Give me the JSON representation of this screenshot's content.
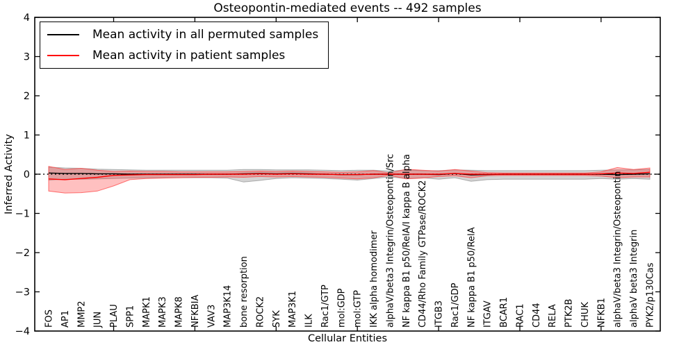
{
  "title": "Osteopontin-mediated events -- 492 samples",
  "axes": {
    "xlabel": "Cellular Entities",
    "ylabel": "Inferred Activity"
  },
  "legend": {
    "entries": [
      {
        "label": "Mean activity in all permuted samples",
        "color": "#000000"
      },
      {
        "label": "Mean activity in patient samples",
        "color": "#ff0000"
      }
    ]
  },
  "colors": {
    "background": "#ffffff",
    "axis": "#000000",
    "permuted_line": "#000000",
    "patient_line": "#ff0000",
    "permuted_band_fill": "rgba(140,140,140,0.38)",
    "permuted_band_edge": "rgba(120,120,120,0.55)",
    "patient_band_fill": "rgba(255,30,30,0.28)",
    "patient_band_edge": "rgba(255,70,70,0.75)"
  },
  "chart_data": {
    "type": "line",
    "title": "Osteopontin-mediated events -- 492 samples",
    "xlabel": "Cellular Entities",
    "ylabel": "Inferred Activity",
    "ylim": [
      -4,
      4
    ],
    "yticks": [
      4,
      3,
      2,
      1,
      0,
      -1,
      -2,
      -3,
      -4
    ],
    "x_major_tick_every": 5,
    "grid": false,
    "legend_position": "upper left",
    "zero_reference_line": 0,
    "categories": [
      "FOS",
      "AP1",
      "MMP2",
      "JUN",
      "PLAU",
      "SPP1",
      "MAPK1",
      "MAPK3",
      "MAPK8",
      "NFKBIA",
      "VAV3",
      "MAP3K14",
      "bone resorption",
      "ROCK2",
      "SYK",
      "MAP3K1",
      "ILK",
      "Rac1/GTP",
      "mol:GDP",
      "mol:GTP",
      "IKK alpha homodimer",
      "alphaV/beta3 Integrin/Osteopontin/Src",
      "NF kappa B1 p50/RelA/I kappa B alpha",
      "CD44/Rho Family GTPase/ROCK2",
      "ITGB3",
      "Rac1/GDP",
      "NF kappa B1 p50/RelA",
      "ITGAV",
      "BCAR1",
      "RAC1",
      "CD44",
      "RELA",
      "PTK2B",
      "CHUK",
      "NFKB1",
      "alphaV/beta3 Integrin/Osteopontin",
      "alphaV beta3 Integrin",
      "PYK2/p130Cas"
    ],
    "series": [
      {
        "name": "Mean activity in all permuted samples",
        "band_name": "permuted-band",
        "line_name": "permuted-mean-line",
        "mean": [
          0.03,
          0.02,
          0.02,
          0.01,
          0.01,
          0.0,
          0.0,
          0.0,
          0.0,
          0.0,
          0.0,
          0.0,
          0.01,
          0.02,
          0.01,
          0.02,
          0.01,
          0.0,
          -0.01,
          -0.01,
          0.0,
          0.0,
          0.0,
          0.0,
          -0.01,
          0.02,
          -0.02,
          -0.01,
          0.0,
          0.0,
          0.0,
          0.0,
          0.0,
          0.0,
          0.0,
          -0.01,
          0.0,
          0.01
        ],
        "lo": [
          -0.15,
          -0.13,
          -0.13,
          -0.12,
          -0.11,
          -0.1,
          -0.09,
          -0.09,
          -0.09,
          -0.09,
          -0.09,
          -0.1,
          -0.2,
          -0.16,
          -0.11,
          -0.09,
          -0.1,
          -0.11,
          -0.13,
          -0.15,
          -0.11,
          -0.07,
          -0.11,
          -0.09,
          -0.13,
          -0.09,
          -0.18,
          -0.14,
          -0.13,
          -0.13,
          -0.13,
          -0.13,
          -0.13,
          -0.13,
          -0.11,
          -0.13,
          -0.11,
          -0.13
        ],
        "hi": [
          0.18,
          0.16,
          0.15,
          0.13,
          0.12,
          0.11,
          0.1,
          0.1,
          0.1,
          0.1,
          0.1,
          0.1,
          0.12,
          0.12,
          0.11,
          0.11,
          0.11,
          0.1,
          0.09,
          0.1,
          0.1,
          0.08,
          0.11,
          0.09,
          0.09,
          0.11,
          0.1,
          0.09,
          0.09,
          0.09,
          0.09,
          0.09,
          0.09,
          0.09,
          0.1,
          0.11,
          0.11,
          0.12
        ]
      },
      {
        "name": "Mean activity in patient samples",
        "band_name": "patient-band",
        "line_name": "patient-mean-line",
        "mean": [
          -0.12,
          -0.14,
          -0.11,
          -0.08,
          -0.03,
          -0.02,
          -0.01,
          -0.01,
          -0.01,
          -0.01,
          0.0,
          0.0,
          0.0,
          0.01,
          0.0,
          0.01,
          0.0,
          0.0,
          -0.01,
          -0.01,
          0.0,
          0.0,
          0.0,
          0.0,
          0.0,
          0.02,
          0.0,
          0.0,
          0.0,
          0.0,
          0.0,
          0.0,
          0.0,
          0.0,
          0.01,
          0.03,
          0.02,
          0.05
        ],
        "lo": [
          -0.43,
          -0.48,
          -0.47,
          -0.43,
          -0.3,
          -0.14,
          -0.11,
          -0.1,
          -0.09,
          -0.08,
          -0.08,
          -0.07,
          -0.08,
          -0.06,
          -0.07,
          -0.06,
          -0.07,
          -0.08,
          -0.1,
          -0.12,
          -0.09,
          -0.03,
          -0.12,
          -0.1,
          -0.06,
          -0.04,
          -0.09,
          -0.04,
          -0.03,
          -0.03,
          -0.03,
          -0.03,
          -0.03,
          -0.03,
          -0.05,
          -0.09,
          -0.07,
          -0.07
        ],
        "hi": [
          0.2,
          0.12,
          0.15,
          0.1,
          0.07,
          0.08,
          0.07,
          0.07,
          0.06,
          0.06,
          0.06,
          0.06,
          0.07,
          0.08,
          0.07,
          0.08,
          0.07,
          0.06,
          0.05,
          0.06,
          0.09,
          0.03,
          0.13,
          0.1,
          0.08,
          0.12,
          0.08,
          0.04,
          0.03,
          0.03,
          0.03,
          0.03,
          0.03,
          0.03,
          0.06,
          0.17,
          0.12,
          0.16
        ]
      }
    ]
  }
}
